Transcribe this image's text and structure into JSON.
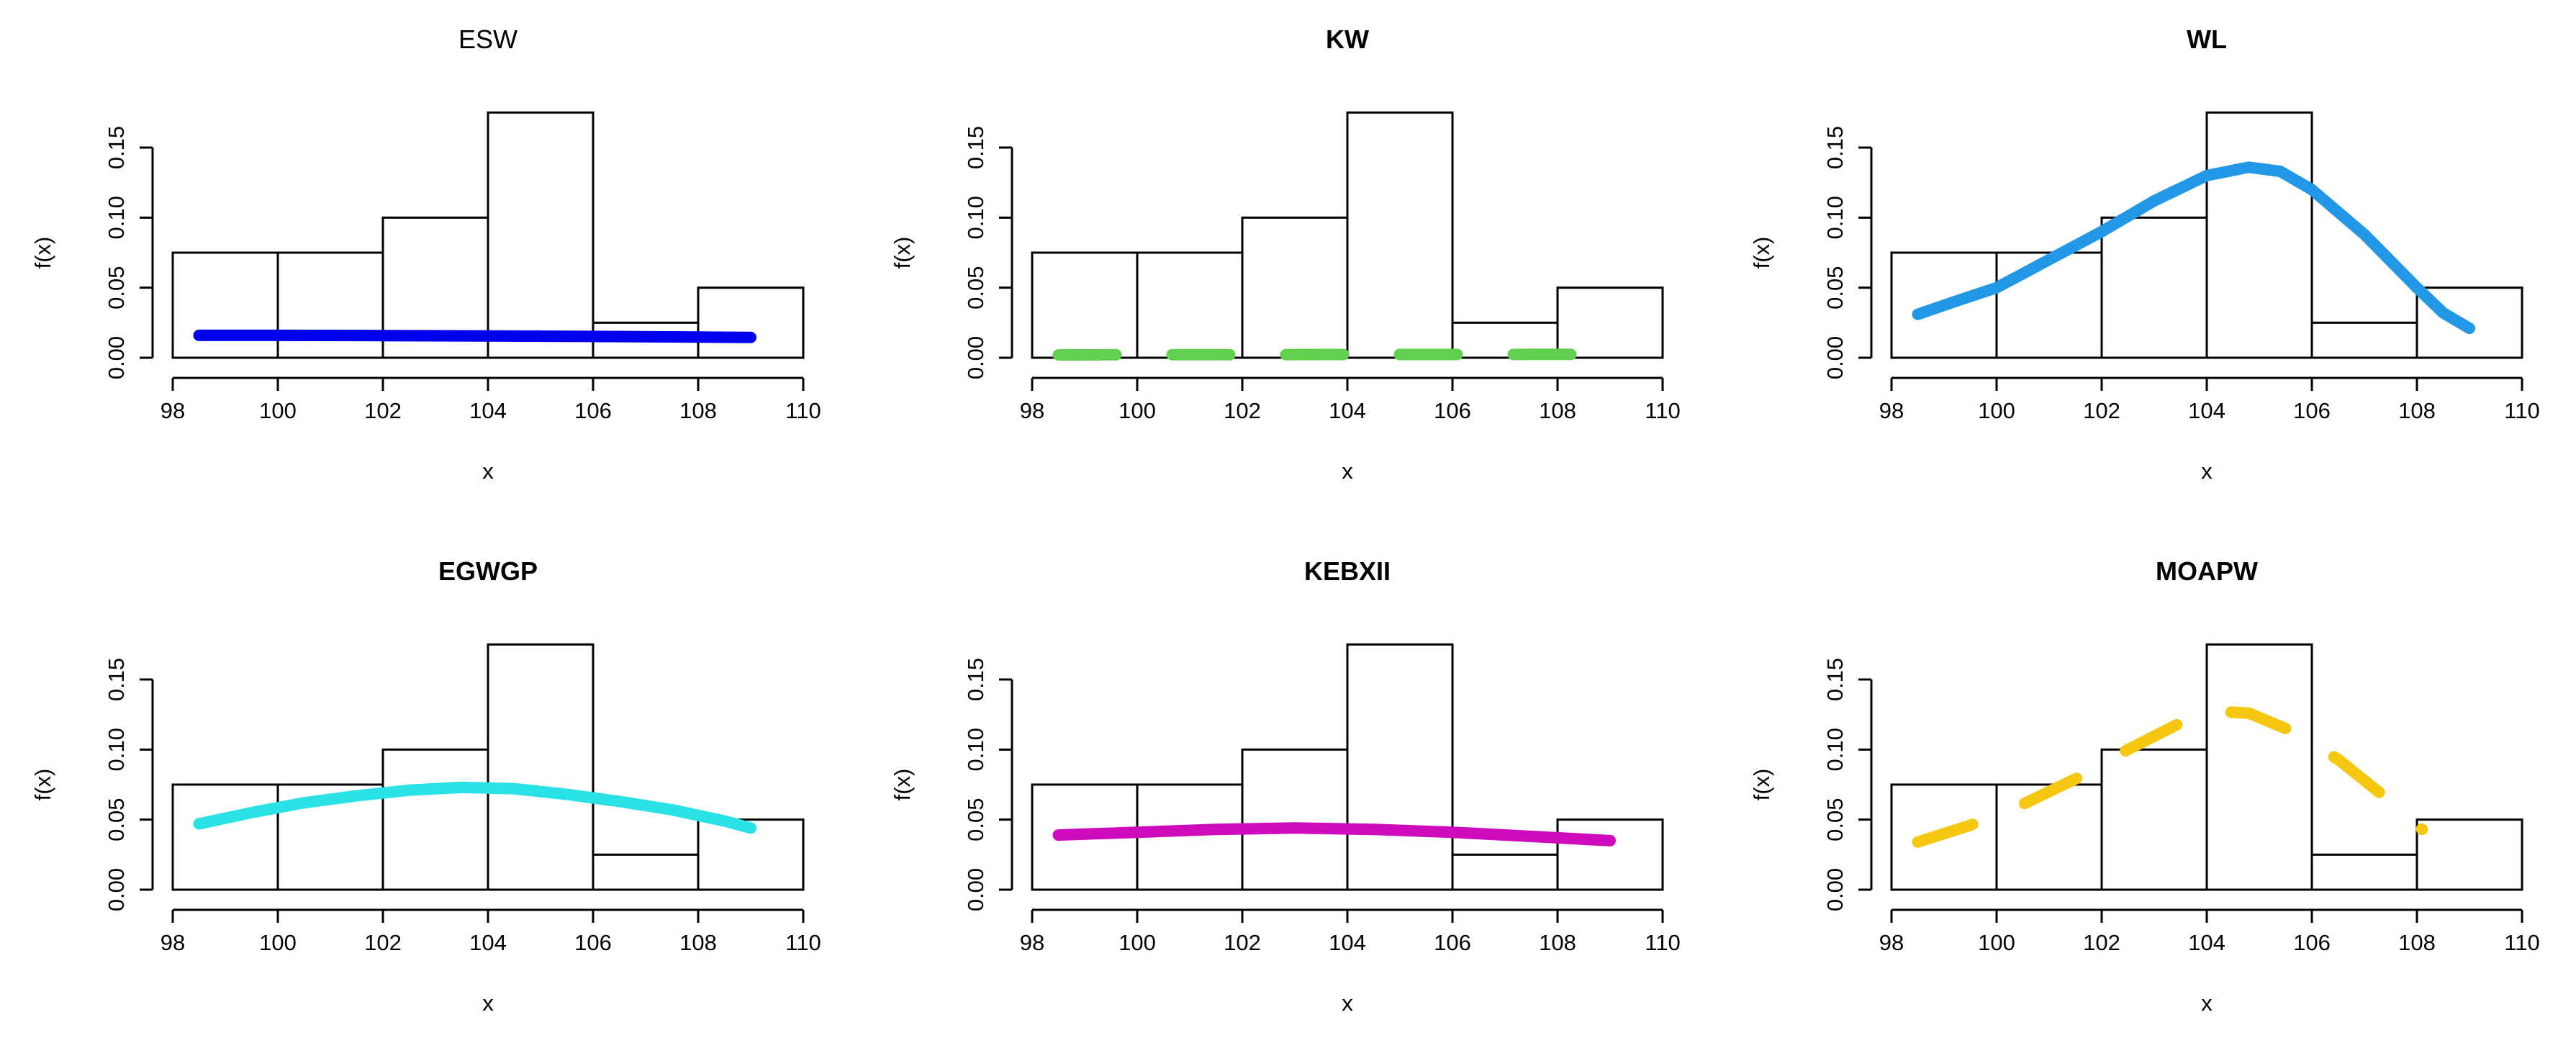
{
  "chart_data": [
    {
      "type": "histogram",
      "title": "ESW",
      "title_bold": false,
      "xlabel": "x",
      "ylabel": "f(x)",
      "xlim": [
        98,
        110
      ],
      "ylim": [
        0,
        0.15
      ],
      "xticks": [
        98,
        100,
        102,
        104,
        106,
        108,
        110
      ],
      "yticks": [
        0.0,
        0.05,
        0.1,
        0.15
      ],
      "ytick_labels": [
        "0.00",
        "0.05",
        "0.10",
        "0.15"
      ],
      "bins": [
        {
          "x0": 98,
          "x1": 100,
          "y": 0.075
        },
        {
          "x0": 100,
          "x1": 102,
          "y": 0.075
        },
        {
          "x0": 102,
          "x1": 104,
          "y": 0.1
        },
        {
          "x0": 104,
          "x1": 106,
          "y": 0.175
        },
        {
          "x0": 106,
          "x1": 108,
          "y": 0.025
        },
        {
          "x0": 108,
          "x1": 110,
          "y": 0.05
        }
      ],
      "curve": {
        "name": "ESW",
        "color": "#0000ee",
        "dash": "solid",
        "x": [
          98.5,
          100,
          102,
          104,
          106,
          108,
          109
        ],
        "y": [
          0.016,
          0.016,
          0.0158,
          0.0155,
          0.0152,
          0.0148,
          0.0145
        ]
      }
    },
    {
      "type": "histogram",
      "title": "KW",
      "title_bold": true,
      "xlabel": "x",
      "ylabel": "f(x)",
      "xlim": [
        98,
        110
      ],
      "ylim": [
        0,
        0.15
      ],
      "xticks": [
        98,
        100,
        102,
        104,
        106,
        108,
        110
      ],
      "yticks": [
        0.0,
        0.05,
        0.1,
        0.15
      ],
      "ytick_labels": [
        "0.00",
        "0.05",
        "0.10",
        "0.15"
      ],
      "bins": [
        {
          "x0": 98,
          "x1": 100,
          "y": 0.075
        },
        {
          "x0": 100,
          "x1": 102,
          "y": 0.075
        },
        {
          "x0": 102,
          "x1": 104,
          "y": 0.1
        },
        {
          "x0": 104,
          "x1": 106,
          "y": 0.175
        },
        {
          "x0": 106,
          "x1": 108,
          "y": 0.025
        },
        {
          "x0": 108,
          "x1": 110,
          "y": 0.05
        }
      ],
      "curve": {
        "name": "KW",
        "color": "#61d04f",
        "dash": "dashed",
        "x": [
          98.5,
          100,
          102,
          104,
          106,
          108,
          108.4
        ],
        "y": [
          0.002,
          0.0022,
          0.0022,
          0.0023,
          0.0023,
          0.0024,
          0.0024
        ]
      }
    },
    {
      "type": "histogram",
      "title": "WL",
      "title_bold": true,
      "xlabel": "x",
      "ylabel": "f(x)",
      "xlim": [
        98,
        110
      ],
      "ylim": [
        0,
        0.15
      ],
      "xticks": [
        98,
        100,
        102,
        104,
        106,
        108,
        110
      ],
      "yticks": [
        0.0,
        0.05,
        0.1,
        0.15
      ],
      "ytick_labels": [
        "0.00",
        "0.05",
        "0.10",
        "0.15"
      ],
      "bins": [
        {
          "x0": 98,
          "x1": 100,
          "y": 0.075
        },
        {
          "x0": 100,
          "x1": 102,
          "y": 0.075
        },
        {
          "x0": 102,
          "x1": 104,
          "y": 0.1
        },
        {
          "x0": 104,
          "x1": 106,
          "y": 0.175
        },
        {
          "x0": 106,
          "x1": 108,
          "y": 0.025
        },
        {
          "x0": 108,
          "x1": 110,
          "y": 0.05
        }
      ],
      "curve": {
        "name": "WL",
        "color": "#2297e6",
        "dash": "solid",
        "x": [
          98.5,
          99.2,
          100,
          101,
          102,
          103,
          104,
          104.8,
          105.4,
          106,
          107,
          108,
          108.5,
          109
        ],
        "y": [
          0.031,
          0.04,
          0.05,
          0.07,
          0.09,
          0.112,
          0.13,
          0.136,
          0.133,
          0.12,
          0.088,
          0.05,
          0.032,
          0.021
        ]
      }
    },
    {
      "type": "histogram",
      "title": "EGWGP",
      "title_bold": true,
      "xlabel": "x",
      "ylabel": "f(x)",
      "xlim": [
        98,
        110
      ],
      "ylim": [
        0,
        0.15
      ],
      "xticks": [
        98,
        100,
        102,
        104,
        106,
        108,
        110
      ],
      "yticks": [
        0.0,
        0.05,
        0.1,
        0.15
      ],
      "ytick_labels": [
        "0.00",
        "0.05",
        "0.10",
        "0.15"
      ],
      "bins": [
        {
          "x0": 98,
          "x1": 100,
          "y": 0.075
        },
        {
          "x0": 100,
          "x1": 102,
          "y": 0.075
        },
        {
          "x0": 102,
          "x1": 104,
          "y": 0.1
        },
        {
          "x0": 104,
          "x1": 106,
          "y": 0.175
        },
        {
          "x0": 106,
          "x1": 108,
          "y": 0.025
        },
        {
          "x0": 108,
          "x1": 110,
          "y": 0.05
        }
      ],
      "curve": {
        "name": "EGWGP",
        "color": "#28e2e5",
        "dash": "solid",
        "x": [
          98.5,
          99.5,
          100.5,
          101.5,
          102.5,
          103.5,
          104.5,
          105.5,
          106.5,
          107.5,
          108.5,
          109
        ],
        "y": [
          0.047,
          0.055,
          0.062,
          0.067,
          0.071,
          0.073,
          0.072,
          0.068,
          0.063,
          0.057,
          0.049,
          0.044
        ]
      }
    },
    {
      "type": "histogram",
      "title": "KEBXII",
      "title_bold": true,
      "xlabel": "x",
      "ylabel": "f(x)",
      "xlim": [
        98,
        110
      ],
      "ylim": [
        0,
        0.15
      ],
      "xticks": [
        98,
        100,
        102,
        104,
        106,
        108,
        110
      ],
      "yticks": [
        0.0,
        0.05,
        0.1,
        0.15
      ],
      "ytick_labels": [
        "0.00",
        "0.05",
        "0.10",
        "0.15"
      ],
      "bins": [
        {
          "x0": 98,
          "x1": 100,
          "y": 0.075
        },
        {
          "x0": 100,
          "x1": 102,
          "y": 0.075
        },
        {
          "x0": 102,
          "x1": 104,
          "y": 0.1
        },
        {
          "x0": 104,
          "x1": 106,
          "y": 0.175
        },
        {
          "x0": 106,
          "x1": 108,
          "y": 0.025
        },
        {
          "x0": 108,
          "x1": 110,
          "y": 0.05
        }
      ],
      "curve": {
        "name": "KEBXII",
        "color": "#cd0bbc",
        "dash": "solid",
        "x": [
          98.5,
          100,
          101.5,
          103,
          104.5,
          106,
          107.5,
          109
        ],
        "y": [
          0.039,
          0.041,
          0.043,
          0.044,
          0.043,
          0.041,
          0.038,
          0.035
        ]
      }
    },
    {
      "type": "histogram",
      "title": "MOAPW",
      "title_bold": true,
      "xlabel": "x",
      "ylabel": "f(x)",
      "xlim": [
        98,
        110
      ],
      "ylim": [
        0,
        0.15
      ],
      "xticks": [
        98,
        100,
        102,
        104,
        106,
        108,
        110
      ],
      "yticks": [
        0.0,
        0.05,
        0.1,
        0.15
      ],
      "ytick_labels": [
        "0.00",
        "0.05",
        "0.10",
        "0.15"
      ],
      "bins": [
        {
          "x0": 98,
          "x1": 100,
          "y": 0.075
        },
        {
          "x0": 100,
          "x1": 102,
          "y": 0.075
        },
        {
          "x0": 102,
          "x1": 104,
          "y": 0.1
        },
        {
          "x0": 104,
          "x1": 106,
          "y": 0.175
        },
        {
          "x0": 106,
          "x1": 108,
          "y": 0.025
        },
        {
          "x0": 108,
          "x1": 110,
          "y": 0.05
        }
      ],
      "curve": {
        "name": "MOAPW",
        "color": "#f5c710",
        "dash": "dashed",
        "x": [
          98.5,
          99.5,
          100.5,
          101.5,
          102.5,
          103.5,
          104.3,
          104.8,
          105.5,
          106.5,
          107.5,
          108.1
        ],
        "y": [
          0.034,
          0.046,
          0.061,
          0.079,
          0.1,
          0.119,
          0.127,
          0.126,
          0.115,
          0.093,
          0.063,
          0.043
        ]
      }
    }
  ]
}
